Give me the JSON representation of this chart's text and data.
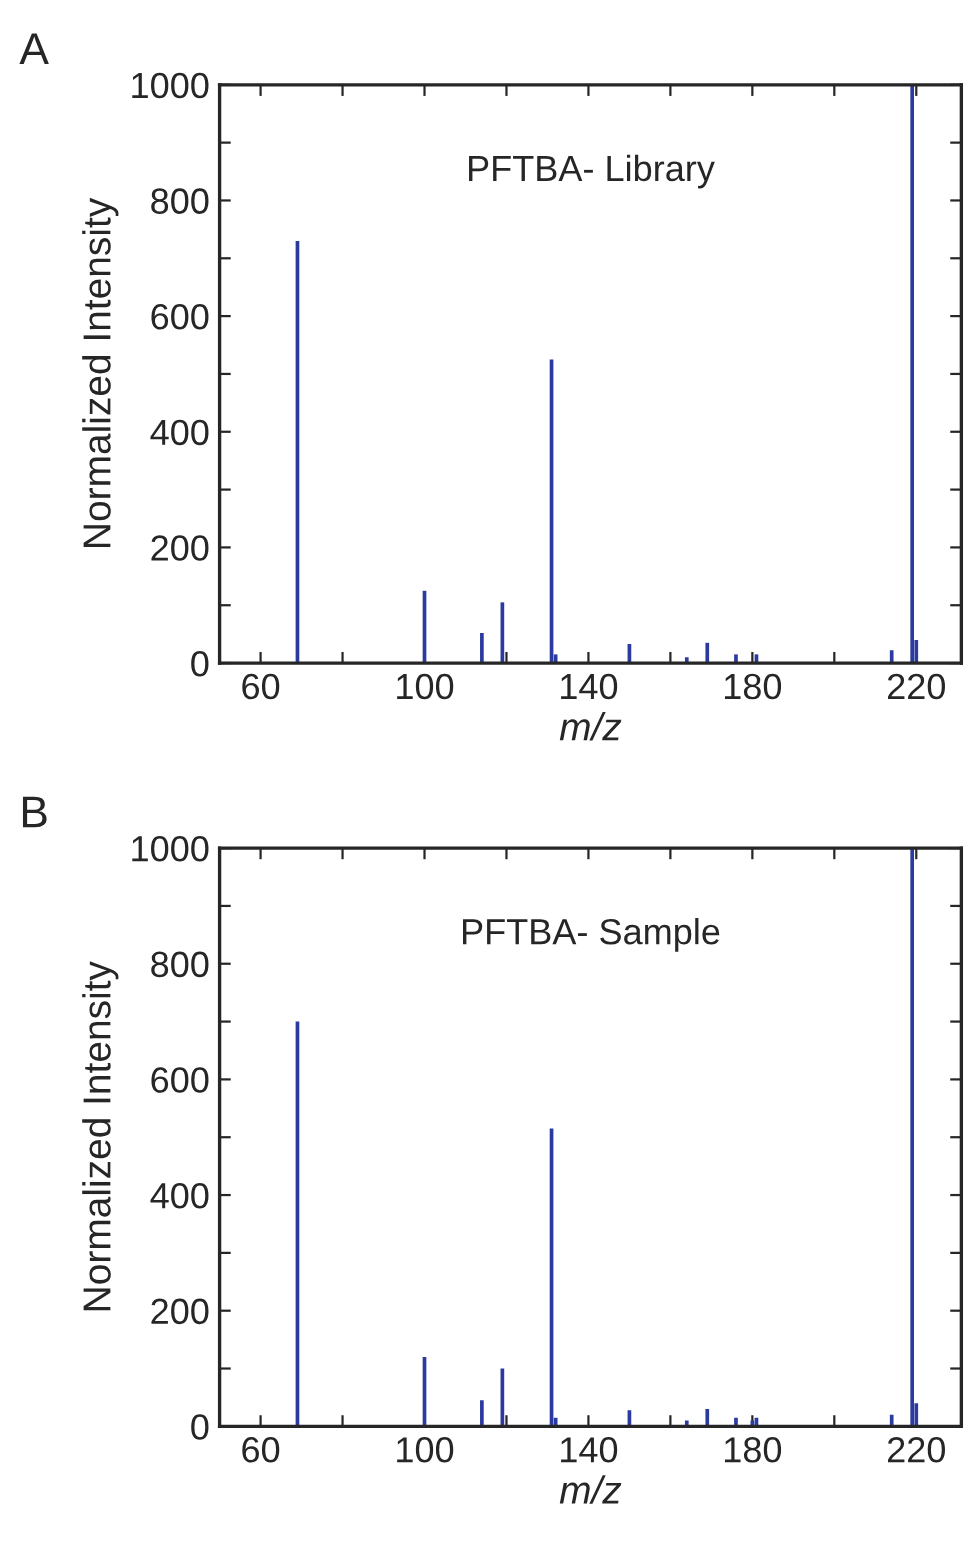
{
  "chart_data": [
    {
      "type": "bar",
      "title": "PFTBA- Library",
      "annotations": [
        "A"
      ],
      "xlabel": "m/z",
      "ylabel": "Normalized Intensity",
      "color": "#2b3a9e",
      "x": [
        69,
        100,
        114,
        119,
        131,
        132,
        150,
        164,
        169,
        176,
        181,
        214,
        219,
        220
      ],
      "values": [
        730,
        125,
        52,
        105,
        525,
        15,
        33,
        10,
        35,
        15,
        15,
        22,
        1000,
        40
      ],
      "xlim": [
        50,
        231
      ],
      "xticks": [
        60,
        {
          "value": 80,
          "label": null
        },
        100,
        {
          "value": 120,
          "label": null
        },
        140,
        {
          "value": 160,
          "label": null
        },
        180,
        {
          "value": 200,
          "label": null
        },
        220
      ],
      "ylim": [
        0,
        1000
      ],
      "yticks": [
        0,
        {
          "value": 100,
          "label": null
        },
        200,
        {
          "value": 300,
          "label": null
        },
        400,
        {
          "value": 500,
          "label": null
        },
        600,
        {
          "value": 700,
          "label": null
        },
        800,
        {
          "value": 900,
          "label": null
        },
        1000
      ],
      "grid": false,
      "legend": false
    },
    {
      "type": "bar",
      "title": "PFTBA- Sample",
      "annotations": [
        "B"
      ],
      "xlabel": "m/z",
      "ylabel": "Normalized Intensity",
      "color": "#2b3a9e",
      "x": [
        69,
        100,
        114,
        119,
        131,
        132,
        150,
        164,
        169,
        176,
        180,
        181,
        214,
        219,
        220
      ],
      "values": [
        700,
        120,
        45,
        100,
        515,
        15,
        28,
        10,
        30,
        15,
        10,
        15,
        20,
        1000,
        40
      ],
      "xlim": [
        50,
        231
      ],
      "xticks": [
        60,
        {
          "value": 80,
          "label": null
        },
        100,
        {
          "value": 120,
          "label": null
        },
        140,
        {
          "value": 160,
          "label": null
        },
        180,
        {
          "value": 200,
          "label": null
        },
        220
      ],
      "ylim": [
        0,
        1000
      ],
      "yticks": [
        0,
        {
          "value": 100,
          "label": null
        },
        200,
        {
          "value": 300,
          "label": null
        },
        400,
        {
          "value": 500,
          "label": null
        },
        600,
        {
          "value": 700,
          "label": null
        },
        800,
        {
          "value": 900,
          "label": null
        },
        1000
      ],
      "grid": false,
      "legend": false
    }
  ]
}
